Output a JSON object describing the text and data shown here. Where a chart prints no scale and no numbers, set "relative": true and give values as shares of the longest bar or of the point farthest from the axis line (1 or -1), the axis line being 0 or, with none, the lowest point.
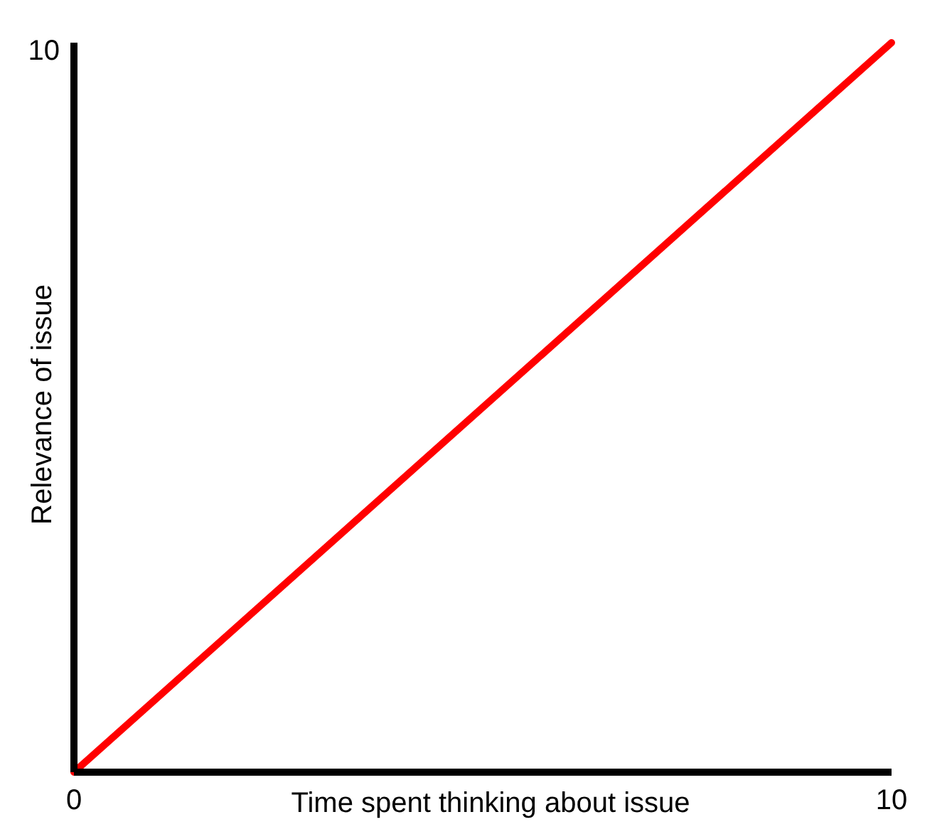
{
  "chart_data": {
    "type": "line",
    "xlabel": "Time spent thinking about issue",
    "ylabel": "Relevance of issue",
    "x": [
      0,
      10
    ],
    "series": [
      {
        "color": "#ff0000",
        "values": [
          0,
          1
        ]
      }
    ],
    "relative": true,
    "annotations": [
      "10"
    ],
    "xlim": [
      0,
      10
    ],
    "xticks": [
      0,
      10
    ]
  }
}
